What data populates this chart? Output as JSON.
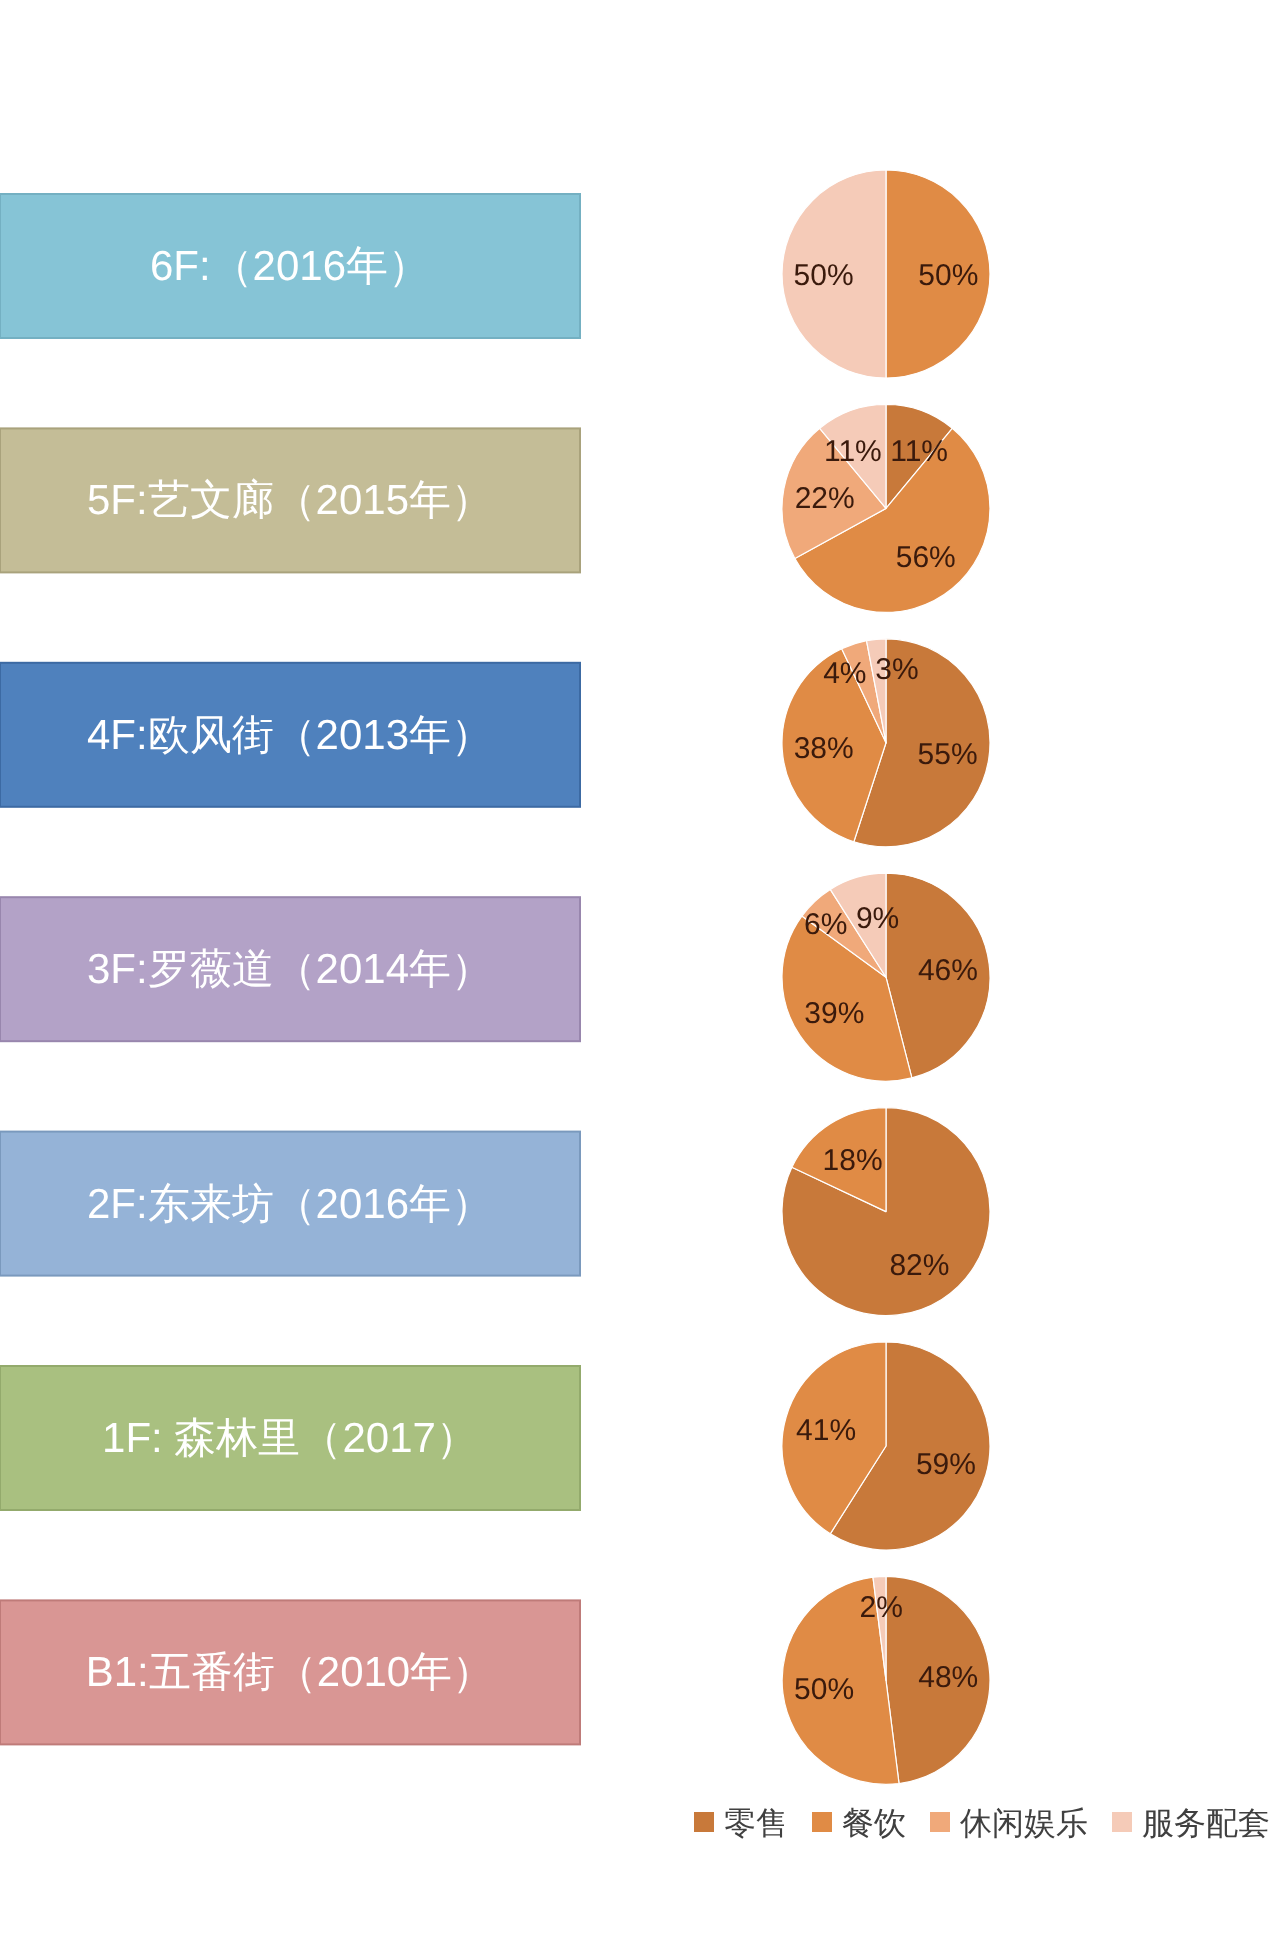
{
  "chart_data": [
    {
      "type": "pie",
      "title": "6F:（2016年）",
      "categories": [
        null,
        null,
        null,
        null
      ],
      "values": [
        null,
        50,
        null,
        50
      ],
      "value_labels": [
        null,
        "50%",
        null,
        "50%"
      ],
      "colors": [
        null,
        "#e08b45",
        null,
        "#f5cbb8"
      ]
    },
    {
      "type": "pie",
      "title": "5F:艺文廊（2015年）",
      "categories": [
        null,
        null,
        null,
        null
      ],
      "values": [
        11,
        56,
        22,
        11
      ],
      "value_labels": [
        "11%",
        "56%",
        "22%",
        "11%"
      ],
      "colors": [
        "#c8793a",
        "#e08b45",
        "#f0a97a",
        "#f5cbb8"
      ]
    },
    {
      "type": "pie",
      "title": "4F:欧风街（2013年）",
      "categories": [
        null,
        null,
        null,
        null
      ],
      "values": [
        55,
        38,
        4,
        3
      ],
      "value_labels": [
        "55%",
        "38%",
        "4%",
        "3%"
      ],
      "colors": [
        "#c8793a",
        "#e08b45",
        "#f0a97a",
        "#f5cbb8"
      ]
    },
    {
      "type": "pie",
      "title": "3F:罗薇道（2014年）",
      "categories": [
        null,
        null,
        null,
        null
      ],
      "values": [
        46,
        39,
        6,
        9
      ],
      "value_labels": [
        "46%",
        "39%",
        "6%",
        "9%"
      ],
      "colors": [
        "#c8793a",
        "#e08b45",
        "#f0a97a",
        "#f5cbb8"
      ]
    },
    {
      "type": "pie",
      "title": "2F:东来坊（2016年）",
      "categories": [
        null,
        null,
        null,
        null
      ],
      "values": [
        82,
        18,
        null,
        null
      ],
      "value_labels": [
        "82%",
        "18%",
        null,
        null
      ],
      "colors": [
        "#c8793a",
        "#e08b45",
        null,
        null
      ]
    },
    {
      "type": "pie",
      "title": "1F: 森林里（2017）",
      "categories": [
        null,
        null,
        null,
        null
      ],
      "values": [
        59,
        41,
        null,
        null
      ],
      "value_labels": [
        "59%",
        "41%",
        null,
        null
      ],
      "colors": [
        "#c8793a",
        "#e08b45",
        null,
        null
      ]
    },
    {
      "type": "pie",
      "title": "B1:五番街（2010年）",
      "categories": [
        "零售",
        "餐饮",
        "休闲娱乐",
        "服务配套"
      ],
      "values": [
        48,
        50,
        null,
        2
      ],
      "value_labels": [
        "48%",
        "50%",
        null,
        "2%"
      ],
      "colors": [
        "#c8793a",
        "#e08b45",
        "#f0a97a",
        "#f5cbb8"
      ],
      "legend": "bottom right"
    }
  ]
}
